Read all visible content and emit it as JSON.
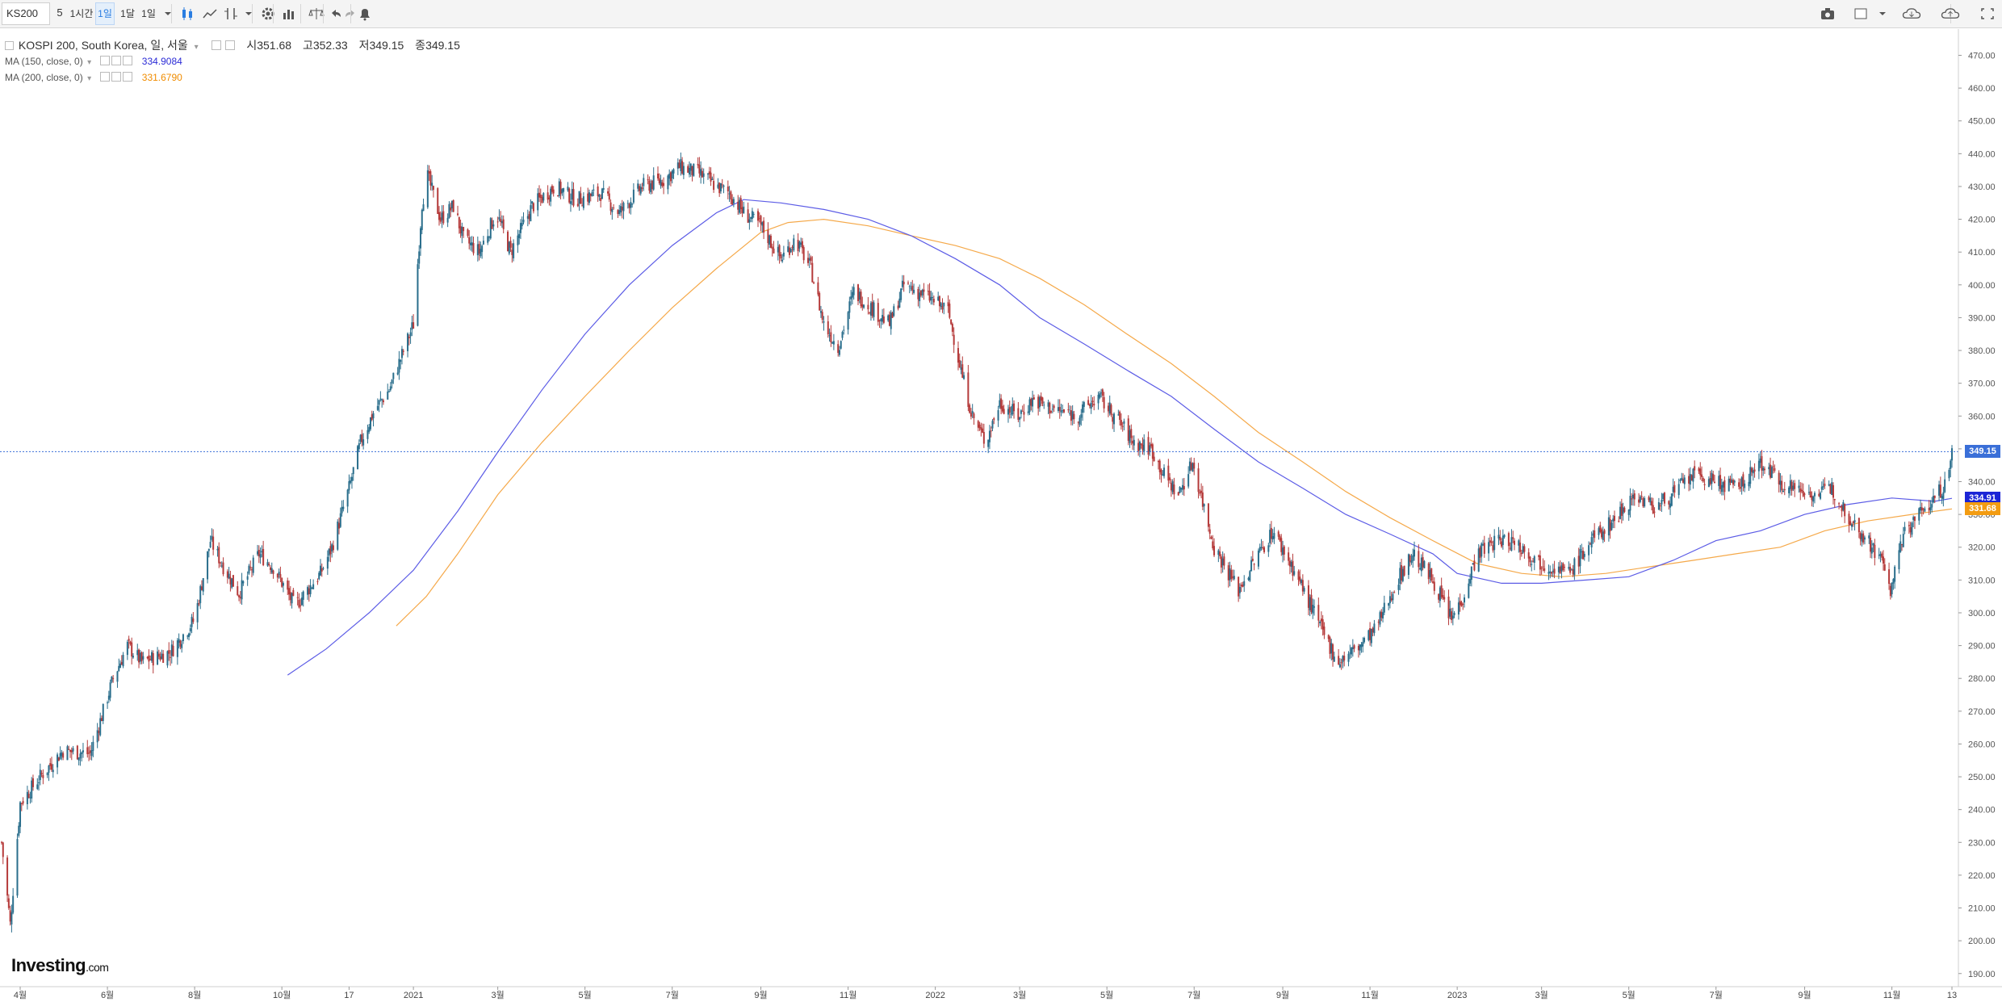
{
  "toolbar": {
    "symbol": "KS200",
    "interval_value": "5",
    "intervals": [
      "1시간",
      "1일",
      "1달",
      "1일"
    ],
    "active_interval": "1일"
  },
  "legend": {
    "title": "KOSPI 200, South Korea, 일, 서울",
    "open_label": "시",
    "open": "351.68",
    "high_label": "고",
    "high": "352.33",
    "low_label": "저",
    "low": "349.15",
    "close_label": "종",
    "close": "349.15",
    "ma150_label": "MA (150, close, 0)",
    "ma150_value": "334.9084",
    "ma200_label": "MA (200, close, 0)",
    "ma200_value": "331.6790"
  },
  "price_tags": {
    "last": "349.15",
    "ma150": "334.91",
    "ma200": "331.68"
  },
  "watermark": {
    "brand": "Investing",
    "suffix": ".com"
  },
  "colors": {
    "up": "#2a6e8c",
    "down": "#b53a3a",
    "ma150": "#5c5ce6",
    "ma200": "#f5a94a",
    "last_line": "#3a6fd8",
    "tag_last": "#3a6fd8",
    "tag_ma150": "#1b25d6",
    "tag_ma200": "#f39c12"
  },
  "chart_data": {
    "type": "line",
    "series_type": "candlestick",
    "title": "KOSPI 200, South Korea, 일, 서울",
    "ylim": [
      186,
      478
    ],
    "y_ticks": [
      190,
      200,
      210,
      220,
      230,
      240,
      250,
      260,
      270,
      280,
      290,
      300,
      310,
      320,
      330,
      340,
      350,
      360,
      370,
      380,
      390,
      400,
      410,
      420,
      430,
      440,
      450,
      460,
      470
    ],
    "x_labels": [
      "4월",
      "6월",
      "8월",
      "10월",
      "17",
      "2021",
      "3월",
      "5월",
      "7월",
      "9월",
      "11월",
      "2022",
      "3월",
      "5월",
      "7월",
      "9월",
      "11월",
      "2023",
      "3월",
      "5월",
      "7월",
      "9월",
      "11월",
      "13"
    ],
    "x_label_dates": [
      "2020-04-01",
      "2020-06-01",
      "2020-08-01",
      "2020-10-01",
      "2020-11-17",
      "2021-01-01",
      "2021-03-01",
      "2021-05-01",
      "2021-07-01",
      "2021-09-01",
      "2021-11-01",
      "2022-01-01",
      "2022-03-01",
      "2022-05-01",
      "2022-07-01",
      "2022-09-01",
      "2022-11-01",
      "2023-01-01",
      "2023-03-01",
      "2023-05-01",
      "2023-07-01",
      "2023-09-01",
      "2023-11-01",
      "2023-12-13"
    ],
    "close": {
      "dates": [
        "2020-03-19",
        "2020-03-25",
        "2020-04-01",
        "2020-04-15",
        "2020-05-01",
        "2020-05-20",
        "2020-06-05",
        "2020-06-15",
        "2020-06-25",
        "2020-07-15",
        "2020-08-01",
        "2020-08-12",
        "2020-08-20",
        "2020-09-01",
        "2020-09-15",
        "2020-09-25",
        "2020-10-10",
        "2020-10-28",
        "2020-11-05",
        "2020-11-17",
        "2020-11-25",
        "2020-12-05",
        "2020-12-15",
        "2021-01-01",
        "2021-01-07",
        "2021-01-11",
        "2021-01-20",
        "2021-01-29",
        "2021-02-05",
        "2021-02-16",
        "2021-02-28",
        "2021-03-10",
        "2021-03-25",
        "2021-04-10",
        "2021-04-25",
        "2021-05-12",
        "2021-05-25",
        "2021-06-10",
        "2021-06-25",
        "2021-07-06",
        "2021-07-20",
        "2021-08-01",
        "2021-08-10",
        "2021-08-20",
        "2021-09-01",
        "2021-09-15",
        "2021-09-25",
        "2021-10-06",
        "2021-10-15",
        "2021-10-25",
        "2021-11-05",
        "2021-11-20",
        "2021-11-30",
        "2021-12-10",
        "2021-12-28",
        "2022-01-10",
        "2022-01-20",
        "2022-01-27",
        "2022-02-05",
        "2022-02-15",
        "2022-02-28",
        "2022-03-10",
        "2022-03-25",
        "2022-04-10",
        "2022-04-25",
        "2022-05-10",
        "2022-05-20",
        "2022-06-01",
        "2022-06-10",
        "2022-06-20",
        "2022-06-30",
        "2022-07-15",
        "2022-08-01",
        "2022-08-15",
        "2022-08-25",
        "2022-09-10",
        "2022-09-25",
        "2022-09-30",
        "2022-10-10",
        "2022-10-25",
        "2022-11-05",
        "2022-11-20",
        "2022-12-01",
        "2022-12-15",
        "2022-12-28",
        "2023-01-05",
        "2023-01-15",
        "2023-01-28",
        "2023-02-10",
        "2023-02-25",
        "2023-03-10",
        "2023-03-20",
        "2023-04-05",
        "2023-04-20",
        "2023-05-05",
        "2023-05-20",
        "2023-06-05",
        "2023-06-15",
        "2023-06-30",
        "2023-07-15",
        "2023-07-25",
        "2023-08-01",
        "2023-08-15",
        "2023-08-25",
        "2023-09-10",
        "2023-09-20",
        "2023-10-01",
        "2023-10-15",
        "2023-10-25",
        "2023-10-31",
        "2023-11-10",
        "2023-11-20",
        "2023-12-01",
        "2023-12-10",
        "2023-12-13"
      ],
      "values": [
        230,
        205,
        242,
        250,
        258,
        257,
        280,
        290,
        285,
        288,
        298,
        322,
        315,
        306,
        318,
        314,
        302,
        312,
        320,
        338,
        352,
        362,
        368,
        388,
        425,
        433,
        420,
        424,
        414,
        410,
        422,
        410,
        424,
        430,
        426,
        428,
        422,
        430,
        432,
        436,
        434,
        430,
        428,
        422,
        418,
        408,
        414,
        405,
        388,
        381,
        398,
        392,
        388,
        400,
        396,
        392,
        372,
        360,
        352,
        364,
        360,
        365,
        362,
        360,
        366,
        358,
        352,
        350,
        342,
        336,
        346,
        320,
        307,
        318,
        325,
        312,
        298,
        293,
        285,
        290,
        295,
        310,
        318,
        310,
        298,
        305,
        318,
        322,
        322,
        316,
        314,
        312,
        322,
        328,
        336,
        332,
        338,
        342,
        340,
        338,
        342,
        346,
        340,
        338,
        336,
        338,
        330,
        322,
        316,
        307,
        325,
        330,
        335,
        340,
        349.15
      ]
    },
    "ma150": {
      "dates": [
        "2020-10-05",
        "2020-11-01",
        "2020-12-01",
        "2021-01-01",
        "2021-02-01",
        "2021-03-01",
        "2021-04-01",
        "2021-05-01",
        "2021-06-01",
        "2021-07-01",
        "2021-08-01",
        "2021-08-20",
        "2021-09-15",
        "2021-10-15",
        "2021-11-15",
        "2021-12-15",
        "2022-01-15",
        "2022-02-15",
        "2022-03-15",
        "2022-04-15",
        "2022-05-15",
        "2022-06-15",
        "2022-07-15",
        "2022-08-15",
        "2022-09-15",
        "2022-10-15",
        "2022-11-15",
        "2022-12-15",
        "2023-01-01",
        "2023-02-01",
        "2023-03-01",
        "2023-04-01",
        "2023-05-01",
        "2023-06-01",
        "2023-07-01",
        "2023-08-01",
        "2023-09-01",
        "2023-10-01",
        "2023-11-01",
        "2023-12-01",
        "2023-12-13"
      ],
      "values": [
        281,
        289,
        300,
        313,
        331,
        349,
        368,
        385,
        400,
        412,
        422,
        426,
        425,
        423,
        420,
        415,
        408,
        400,
        390,
        382,
        374,
        366,
        356,
        346,
        338,
        330,
        324,
        318,
        312,
        309,
        309,
        310,
        311,
        316,
        322,
        325,
        330,
        333,
        335,
        334,
        334.91
      ]
    },
    "ma200": {
      "dates": [
        "2020-12-20",
        "2021-01-10",
        "2021-02-01",
        "2021-03-01",
        "2021-04-01",
        "2021-05-01",
        "2021-06-01",
        "2021-07-01",
        "2021-08-01",
        "2021-09-01",
        "2021-09-20",
        "2021-10-15",
        "2021-11-15",
        "2021-12-15",
        "2022-01-15",
        "2022-02-15",
        "2022-03-15",
        "2022-04-15",
        "2022-05-15",
        "2022-06-15",
        "2022-07-15",
        "2022-08-15",
        "2022-09-15",
        "2022-10-15",
        "2022-11-15",
        "2022-12-15",
        "2023-01-15",
        "2023-02-15",
        "2023-03-15",
        "2023-04-15",
        "2023-05-15",
        "2023-06-15",
        "2023-07-15",
        "2023-08-15",
        "2023-09-15",
        "2023-10-15",
        "2023-11-15",
        "2023-12-13"
      ],
      "values": [
        296,
        305,
        318,
        336,
        352,
        366,
        380,
        393,
        405,
        416,
        419,
        420,
        418,
        415,
        412,
        408,
        402,
        394,
        385,
        376,
        366,
        355,
        346,
        337,
        329,
        322,
        315,
        312,
        311,
        312,
        314,
        316,
        318,
        320,
        325,
        328,
        330,
        331.68
      ]
    },
    "last_price": 349.15
  }
}
